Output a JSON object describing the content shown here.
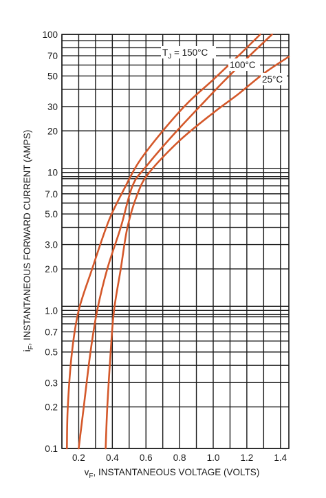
{
  "chart_data": {
    "type": "line",
    "title": "",
    "xlabel": "vF, INSTANTANEOUS VOLTAGE (VOLTS)",
    "xlabel_parts": {
      "main": "v",
      "sub": "F",
      "rest": ", INSTANTANEOUS VOLTAGE (VOLTS)"
    },
    "ylabel": "iF, INSTANTANEOUS FORWARD CURRENT (AMPS)",
    "ylabel_parts": {
      "main": "i",
      "sub": "F",
      "rest": ", INSTANTANEOUS FORWARD CURRENT (AMPS)"
    },
    "x_scale": "linear",
    "y_scale": "log",
    "xlim": [
      0.1,
      1.45
    ],
    "ylim": [
      0.1,
      100
    ],
    "grid": true,
    "x_ticks": [
      {
        "value": 0.2,
        "label": "0.2"
      },
      {
        "value": 0.4,
        "label": "0.4"
      },
      {
        "value": 0.6,
        "label": "0.6"
      },
      {
        "value": 0.8,
        "label": "0.8"
      },
      {
        "value": 1.0,
        "label": "1.0"
      },
      {
        "value": 1.2,
        "label": "1.2"
      },
      {
        "value": 1.4,
        "label": "1.4"
      }
    ],
    "y_ticks": [
      {
        "value": 0.1,
        "label": "0.1"
      },
      {
        "value": 0.2,
        "label": "0.2"
      },
      {
        "value": 0.3,
        "label": "0.3"
      },
      {
        "value": 0.5,
        "label": "0.5"
      },
      {
        "value": 0.7,
        "label": "0.7"
      },
      {
        "value": 1.0,
        "label": "1.0"
      },
      {
        "value": 2.0,
        "label": "2.0"
      },
      {
        "value": 3.0,
        "label": "3.0"
      },
      {
        "value": 5.0,
        "label": "5.0"
      },
      {
        "value": 7.0,
        "label": "7.0"
      },
      {
        "value": 10,
        "label": "10"
      },
      {
        "value": 20,
        "label": "20"
      },
      {
        "value": 30,
        "label": "30"
      },
      {
        "value": 50,
        "label": "50"
      },
      {
        "value": 70,
        "label": "70"
      },
      {
        "value": 100,
        "label": "100"
      }
    ],
    "y_grid_values": [
      0.1,
      0.2,
      0.3,
      0.4,
      0.5,
      0.6,
      0.7,
      0.8,
      0.9,
      1,
      2,
      3,
      4,
      5,
      6,
      7,
      8,
      9,
      10,
      20,
      30,
      40,
      50,
      60,
      70,
      80,
      90,
      100
    ],
    "x_grid_values": [
      0.1,
      0.2,
      0.3,
      0.4,
      0.5,
      0.6,
      0.7,
      0.8,
      0.9,
      1.0,
      1.1,
      1.2,
      1.3,
      1.4
    ],
    "line_color": "#d4582a",
    "series": [
      {
        "name": "TJ = 150°C",
        "label_parts": {
          "main": "T",
          "sub": "J",
          "rest": " = 150°C"
        },
        "points": [
          [
            0.13,
            0.1
          ],
          [
            0.135,
            0.2
          ],
          [
            0.16,
            0.5
          ],
          [
            0.2,
            1.0
          ],
          [
            0.28,
            2.0
          ],
          [
            0.38,
            4.5
          ],
          [
            0.48,
            8.0
          ],
          [
            0.56,
            12.0
          ],
          [
            0.7,
            20.0
          ],
          [
            0.85,
            32.0
          ],
          [
            1.0,
            47.0
          ],
          [
            1.15,
            70.0
          ],
          [
            1.28,
            100.0
          ]
        ]
      },
      {
        "name": "100°C",
        "label_parts": {
          "main": "",
          "sub": "",
          "rest": "100°C"
        },
        "points": [
          [
            0.2,
            0.1
          ],
          [
            0.23,
            0.2
          ],
          [
            0.27,
            0.5
          ],
          [
            0.31,
            1.0
          ],
          [
            0.37,
            2.0
          ],
          [
            0.45,
            4.0
          ],
          [
            0.52,
            8.0
          ],
          [
            0.6,
            11.0
          ],
          [
            0.75,
            18.0
          ],
          [
            0.92,
            30.0
          ],
          [
            1.05,
            44.0
          ],
          [
            1.2,
            67.0
          ],
          [
            1.35,
            100.0
          ]
        ]
      },
      {
        "name": "25°C",
        "label_parts": {
          "main": "",
          "sub": "",
          "rest": "25°C"
        },
        "points": [
          [
            0.36,
            0.1
          ],
          [
            0.37,
            0.2
          ],
          [
            0.39,
            0.5
          ],
          [
            0.41,
            1.0
          ],
          [
            0.45,
            2.0
          ],
          [
            0.49,
            4.0
          ],
          [
            0.55,
            7.0
          ],
          [
            0.62,
            10.0
          ],
          [
            0.8,
            17.0
          ],
          [
            1.0,
            27.0
          ],
          [
            1.15,
            37.0
          ],
          [
            1.3,
            52.0
          ],
          [
            1.45,
            69.0
          ]
        ]
      }
    ]
  }
}
